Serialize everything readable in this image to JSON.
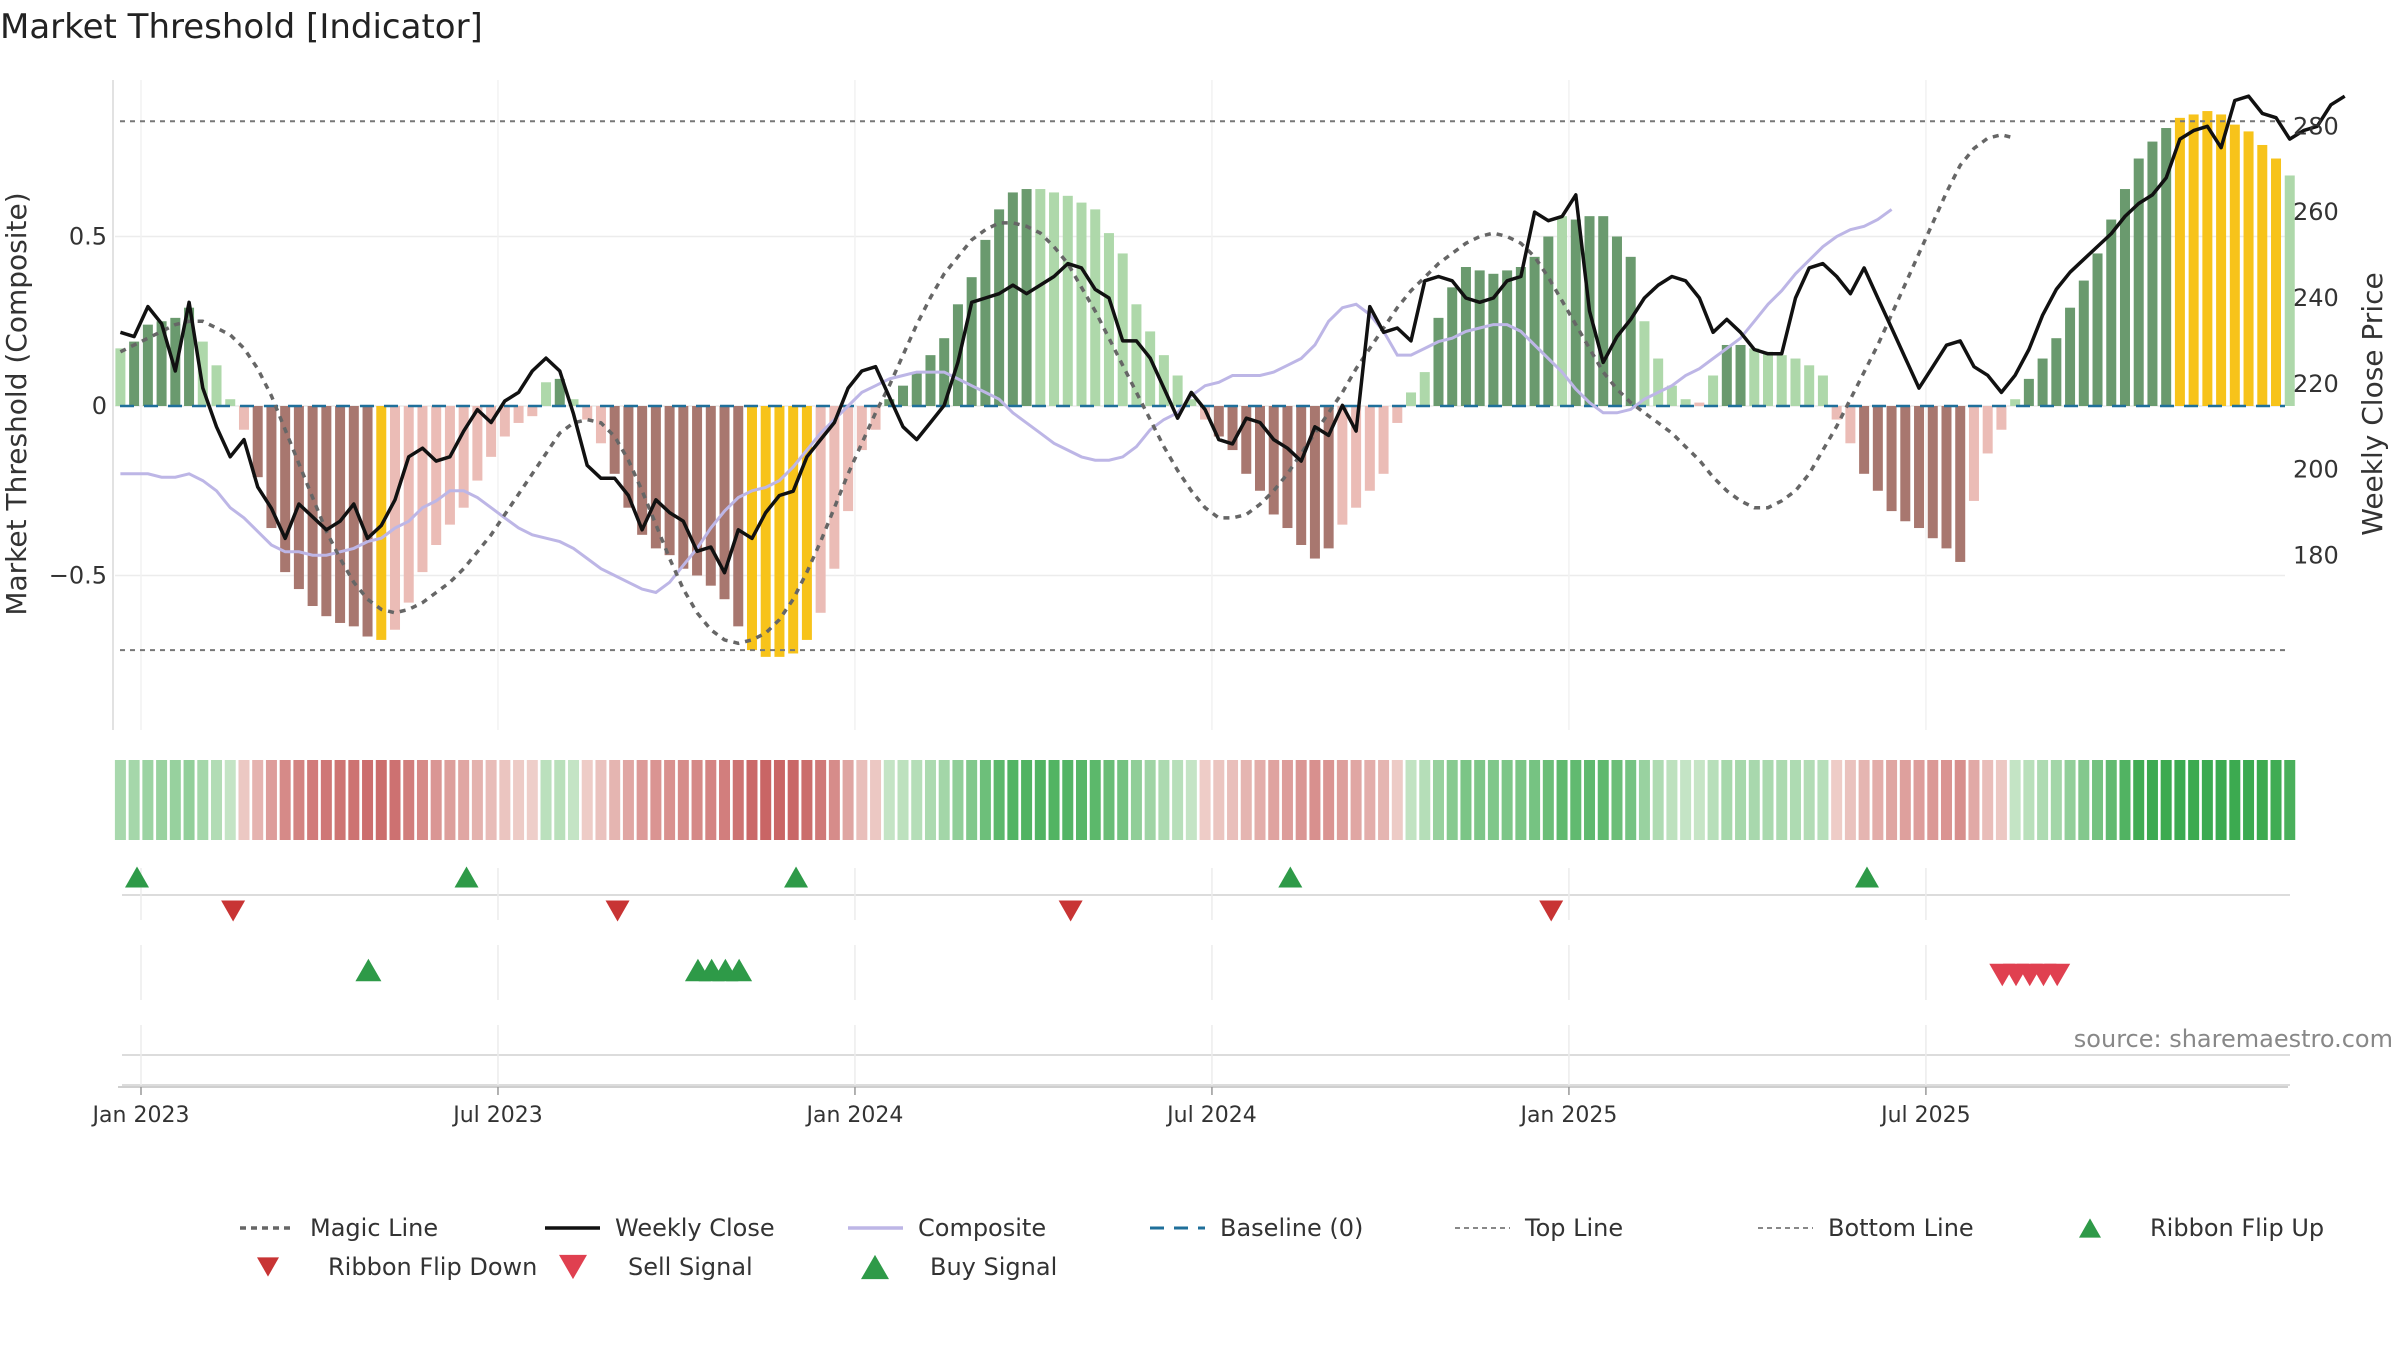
{
  "title": "Market Threshold [Indicator]",
  "source": "source: sharemaestro.com",
  "chart_data": {
    "type": "bar",
    "title": "Market Threshold [Indicator]",
    "y_left_label": "Market Threshold (Composite)",
    "y_right_label": "Weekly Close Price",
    "y_left_ticks": [
      "0.5",
      "0",
      "−0.5"
    ],
    "y_left_tick_values": [
      0.5,
      0,
      -0.5
    ],
    "y_right_ticks": [
      "280",
      "260",
      "240",
      "220",
      "200",
      "180"
    ],
    "y_right_tick_values": [
      280,
      260,
      240,
      220,
      200,
      180
    ],
    "x_ticks": [
      "Jan 2023",
      "Jul 2023",
      "Jan 2024",
      "Jul 2024",
      "Jan 2025",
      "Jul 2025"
    ],
    "x_tick_weeks": [
      0,
      26,
      52,
      78,
      104,
      130
    ],
    "top_line": 0.84,
    "bottom_line": -0.72,
    "start_week": -1.5,
    "colors": {
      "strong_up": "#6a9a6e",
      "weak_up": "#aed8aa",
      "strong_down": "#a8776f",
      "weak_down": "#ebbcb6",
      "extreme": "#f7c31a",
      "weekly_close": "#111111",
      "magic_line": "#666666",
      "composite": "#bdb6e6",
      "baseline": "#1f6f9a",
      "flip_up": "#2e9a48",
      "flip_down": "#c83434",
      "sell": "#e04050",
      "buy": "#2e9a48"
    },
    "bars": [
      0.17,
      0.19,
      0.24,
      0.25,
      0.26,
      0.29,
      0.19,
      0.12,
      0.02,
      -0.07,
      -0.21,
      -0.36,
      -0.49,
      -0.54,
      -0.59,
      -0.62,
      -0.64,
      -0.65,
      -0.68,
      -0.69,
      -0.66,
      -0.58,
      -0.49,
      -0.41,
      -0.35,
      -0.3,
      -0.22,
      -0.15,
      -0.09,
      -0.05,
      -0.03,
      0.07,
      0.08,
      0.02,
      -0.04,
      -0.11,
      -0.2,
      -0.3,
      -0.38,
      -0.42,
      -0.44,
      -0.48,
      -0.5,
      -0.53,
      -0.57,
      -0.65,
      -0.72,
      -0.74,
      -0.74,
      -0.73,
      -0.69,
      -0.61,
      -0.48,
      -0.31,
      -0.13,
      -0.07,
      0.02,
      0.06,
      0.1,
      0.15,
      0.2,
      0.3,
      0.38,
      0.49,
      0.58,
      0.63,
      0.64,
      0.64,
      0.63,
      0.62,
      0.6,
      0.58,
      0.51,
      0.45,
      0.3,
      0.22,
      0.15,
      0.09,
      0.02,
      -0.04,
      -0.09,
      -0.13,
      -0.2,
      -0.25,
      -0.32,
      -0.36,
      -0.41,
      -0.45,
      -0.42,
      -0.35,
      -0.3,
      -0.25,
      -0.2,
      -0.05,
      0.04,
      0.1,
      0.26,
      0.35,
      0.41,
      0.4,
      0.39,
      0.4,
      0.41,
      0.44,
      0.5,
      0.56,
      0.55,
      0.56,
      0.56,
      0.5,
      0.44,
      0.25,
      0.14,
      0.06,
      0.02,
      0.01,
      0.09,
      0.18,
      0.18,
      0.17,
      0.16,
      0.15,
      0.14,
      0.12,
      0.09,
      -0.04,
      -0.11,
      -0.2,
      -0.25,
      -0.31,
      -0.34,
      -0.36,
      -0.39,
      -0.42,
      -0.46,
      -0.28,
      -0.14,
      -0.07,
      0.02,
      0.08,
      0.14,
      0.2,
      0.29,
      0.37,
      0.45,
      0.55,
      0.64,
      0.73,
      0.78,
      0.82,
      0.85,
      0.86,
      0.87,
      0.86,
      0.83,
      0.81,
      0.77,
      0.73,
      0.68
    ],
    "bar_categories": "1=strong up, 2=weak up, 3=strong down, 4=weak down, 5=extreme",
    "bar_cat": [
      2,
      1,
      1,
      1,
      1,
      1,
      2,
      2,
      2,
      4,
      3,
      3,
      3,
      3,
      3,
      3,
      3,
      3,
      3,
      5,
      4,
      4,
      4,
      4,
      4,
      4,
      4,
      4,
      4,
      4,
      4,
      2,
      1,
      2,
      4,
      4,
      3,
      3,
      3,
      3,
      3,
      3,
      3,
      3,
      3,
      3,
      5,
      5,
      5,
      5,
      5,
      4,
      4,
      4,
      4,
      4,
      1,
      1,
      1,
      1,
      1,
      1,
      1,
      1,
      1,
      1,
      1,
      2,
      2,
      2,
      2,
      2,
      2,
      2,
      2,
      2,
      2,
      2,
      2,
      4,
      3,
      3,
      3,
      3,
      3,
      3,
      3,
      3,
      3,
      4,
      4,
      4,
      4,
      4,
      2,
      2,
      1,
      1,
      1,
      1,
      1,
      1,
      1,
      1,
      1,
      2,
      1,
      1,
      1,
      1,
      1,
      2,
      2,
      2,
      2,
      4,
      2,
      1,
      1,
      2,
      2,
      2,
      2,
      2,
      2,
      4,
      4,
      3,
      3,
      3,
      3,
      3,
      3,
      3,
      3,
      4,
      4,
      4,
      2,
      1,
      1,
      1,
      1,
      1,
      1,
      1,
      1,
      1,
      1,
      1,
      5,
      5,
      5,
      5,
      5,
      5,
      5,
      5,
      2,
      2,
      2,
      2
    ],
    "weekly_close": [
      232,
      231,
      238,
      234,
      223,
      239,
      219,
      210,
      203,
      207,
      196,
      191,
      184,
      192,
      189,
      186,
      188,
      192,
      184,
      187,
      193,
      203,
      205,
      202,
      203,
      209,
      214,
      211,
      216,
      218,
      223,
      226,
      223,
      213,
      201,
      198,
      198,
      194,
      186,
      193,
      190,
      188,
      181,
      182,
      176,
      186,
      184,
      190,
      194,
      195,
      203,
      207,
      211,
      219,
      223,
      224,
      217,
      210,
      207,
      211,
      215,
      225,
      239,
      240,
      241,
      243,
      241,
      243,
      245,
      248,
      247,
      242,
      240,
      230,
      230,
      226,
      219,
      212,
      218,
      214,
      207,
      206,
      212,
      211,
      207,
      205,
      202,
      210,
      208,
      215,
      209,
      238,
      232,
      233,
      230,
      244,
      245,
      244,
      240,
      239,
      240,
      244,
      245,
      260,
      258,
      259,
      264,
      237,
      225,
      231,
      235,
      240,
      243,
      245,
      244,
      240,
      232,
      235,
      232,
      228,
      227,
      227,
      240,
      247,
      248,
      245,
      241,
      247,
      240,
      233,
      226,
      219,
      224,
      229,
      230,
      224,
      222,
      218,
      222,
      228,
      236,
      242,
      246,
      249,
      252,
      255,
      259,
      262,
      264,
      268,
      277,
      279,
      280,
      275,
      286,
      287,
      283,
      282,
      277,
      279,
      280,
      285,
      287
    ],
    "magic_line": [
      0.16,
      0.18,
      0.2,
      0.22,
      0.24,
      0.25,
      0.25,
      0.23,
      0.21,
      0.17,
      0.11,
      0.03,
      -0.07,
      -0.17,
      -0.27,
      -0.37,
      -0.45,
      -0.52,
      -0.57,
      -0.6,
      -0.61,
      -0.6,
      -0.58,
      -0.55,
      -0.52,
      -0.48,
      -0.43,
      -0.38,
      -0.32,
      -0.26,
      -0.2,
      -0.14,
      -0.08,
      -0.05,
      -0.04,
      -0.05,
      -0.09,
      -0.16,
      -0.25,
      -0.35,
      -0.45,
      -0.54,
      -0.61,
      -0.66,
      -0.69,
      -0.7,
      -0.69,
      -0.67,
      -0.63,
      -0.57,
      -0.49,
      -0.4,
      -0.3,
      -0.2,
      -0.11,
      -0.02,
      0.06,
      0.15,
      0.24,
      0.32,
      0.39,
      0.44,
      0.49,
      0.52,
      0.54,
      0.54,
      0.53,
      0.51,
      0.47,
      0.42,
      0.35,
      0.28,
      0.2,
      0.12,
      0.04,
      -0.04,
      -0.12,
      -0.19,
      -0.25,
      -0.3,
      -0.33,
      -0.33,
      -0.32,
      -0.29,
      -0.25,
      -0.2,
      -0.14,
      -0.08,
      -0.02,
      0.04,
      0.11,
      0.17,
      0.23,
      0.29,
      0.34,
      0.38,
      0.42,
      0.45,
      0.48,
      0.5,
      0.51,
      0.5,
      0.48,
      0.44,
      0.38,
      0.31,
      0.24,
      0.17,
      0.1,
      0.05,
      0.01,
      -0.02,
      -0.05,
      -0.08,
      -0.12,
      -0.16,
      -0.21,
      -0.25,
      -0.28,
      -0.3,
      -0.3,
      -0.28,
      -0.25,
      -0.2,
      -0.13,
      -0.06,
      0.02,
      0.1,
      0.18,
      0.27,
      0.36,
      0.45,
      0.54,
      0.63,
      0.71,
      0.76,
      0.79,
      0.8,
      0.79
    ],
    "composite": [
      -0.2,
      -0.2,
      -0.2,
      -0.21,
      -0.21,
      -0.2,
      -0.22,
      -0.25,
      -0.3,
      -0.33,
      -0.37,
      -0.41,
      -0.43,
      -0.43,
      -0.44,
      -0.44,
      -0.43,
      -0.42,
      -0.4,
      -0.39,
      -0.36,
      -0.34,
      -0.3,
      -0.28,
      -0.25,
      -0.25,
      -0.27,
      -0.3,
      -0.33,
      -0.36,
      -0.38,
      -0.39,
      -0.4,
      -0.42,
      -0.45,
      -0.48,
      -0.5,
      -0.52,
      -0.54,
      -0.55,
      -0.52,
      -0.47,
      -0.42,
      -0.36,
      -0.31,
      -0.27,
      -0.25,
      -0.24,
      -0.22,
      -0.18,
      -0.13,
      -0.08,
      -0.04,
      0.0,
      0.04,
      0.06,
      0.08,
      0.09,
      0.1,
      0.1,
      0.1,
      0.08,
      0.06,
      0.04,
      0.02,
      -0.02,
      -0.05,
      -0.08,
      -0.11,
      -0.13,
      -0.15,
      -0.16,
      -0.16,
      -0.15,
      -0.12,
      -0.07,
      -0.04,
      -0.02,
      0.03,
      0.06,
      0.07,
      0.09,
      0.09,
      0.09,
      0.1,
      0.12,
      0.14,
      0.18,
      0.25,
      0.29,
      0.3,
      0.27,
      0.22,
      0.15,
      0.15,
      0.17,
      0.19,
      0.2,
      0.22,
      0.23,
      0.24,
      0.24,
      0.22,
      0.18,
      0.14,
      0.1,
      0.05,
      0.01,
      -0.02,
      -0.02,
      -0.01,
      0.02,
      0.04,
      0.06,
      0.09,
      0.11,
      0.14,
      0.17,
      0.2,
      0.25,
      0.3,
      0.34,
      0.39,
      0.43,
      0.47,
      0.5,
      0.52,
      0.53,
      0.55,
      0.58
    ],
    "ribbon_flip_up_weeks": [
      0,
      24,
      48,
      84,
      126
    ],
    "ribbon_flip_down_weeks": [
      7,
      35,
      68,
      103
    ],
    "buy_signal_weeks": [
      17,
      41,
      42,
      43,
      44
    ],
    "sell_signal_weeks": [
      136,
      137,
      138,
      139,
      140
    ],
    "legend": [
      "Magic Line",
      "Weekly Close",
      "Composite",
      "Baseline (0)",
      "Top Line",
      "Bottom Line",
      "Ribbon Flip Up",
      "Ribbon Flip Down",
      "Sell Signal",
      "Buy Signal"
    ],
    "legend_placement": "bottom"
  }
}
